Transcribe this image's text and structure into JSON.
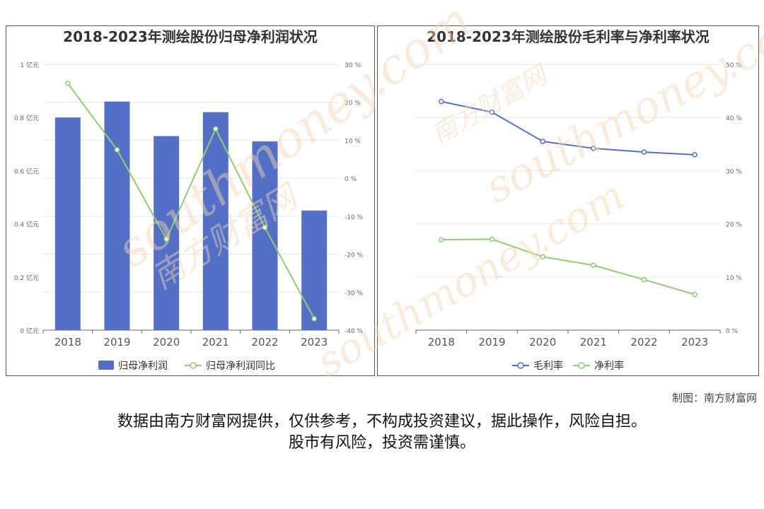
{
  "chart_data": [
    {
      "type": "bar",
      "title": "2018-2023年测绘股份归母净利润状况",
      "categories": [
        "2018",
        "2019",
        "2020",
        "2021",
        "2022",
        "2023"
      ],
      "series": [
        {
          "name": "归母净利润",
          "type": "bar",
          "axis": "left",
          "values": [
            0.8,
            0.86,
            0.73,
            0.82,
            0.71,
            0.45
          ]
        },
        {
          "name": "归母净利润同比",
          "type": "line",
          "axis": "right",
          "values": [
            25,
            7.5,
            -16,
            13,
            -13,
            -37
          ]
        }
      ],
      "y_left": {
        "min": 0,
        "max": 1,
        "ticks": [
          0,
          0.2,
          0.4,
          0.6,
          0.8,
          1
        ],
        "tick_labels": [
          "0 亿元",
          "0.2 亿元",
          "0.4 亿元",
          "0.6 亿元",
          "0.8 亿元",
          "1 亿元"
        ]
      },
      "y_right": {
        "min": -40,
        "max": 30,
        "ticks": [
          -40,
          -30,
          -20,
          -10,
          0,
          10,
          20,
          30
        ],
        "tick_labels": [
          "-40 %",
          "-30 %",
          "-20 %",
          "-10 %",
          "0 %",
          "10 %",
          "20 %",
          "30 %"
        ]
      },
      "grid": true,
      "legend": "bottom"
    },
    {
      "type": "line",
      "title": "2018-2023年测绘股份毛利率与净利率状况",
      "categories": [
        "2018",
        "2019",
        "2020",
        "2021",
        "2022",
        "2023"
      ],
      "series": [
        {
          "name": "毛利率",
          "values": [
            43,
            41,
            35.5,
            34.2,
            33.5,
            33
          ]
        },
        {
          "name": "净利率",
          "values": [
            17,
            17.1,
            13.8,
            12.2,
            9.5,
            6.7
          ]
        }
      ],
      "y_right": {
        "min": 0,
        "max": 50,
        "ticks": [
          0,
          10,
          20,
          30,
          40,
          50
        ],
        "tick_labels": [
          "0 %",
          "10 %",
          "20 %",
          "30 %",
          "40 %",
          "50 %"
        ]
      },
      "grid": true,
      "legend": "bottom"
    }
  ],
  "colors": {
    "bar": "#5470c6",
    "line_green": "#91cc75",
    "line_blue": "#5470c6"
  },
  "credit": "制图：南方财富网",
  "disclaimer_line1": "数据由南方财富网提供，仅供参考，不构成投资建议，据此操作，风险自担。",
  "disclaimer_line2": "股市有风险，投资需谨慎。",
  "watermark_cn": "南方财富网",
  "watermark_en": "southmoney.com"
}
